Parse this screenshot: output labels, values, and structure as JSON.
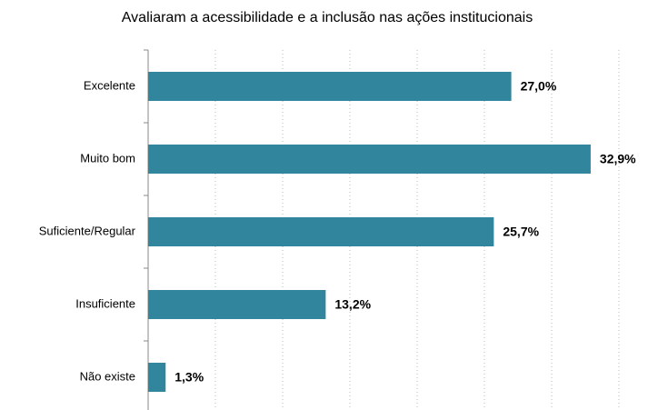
{
  "chart_data": {
    "type": "hbar",
    "title": "Avaliaram a acessibilidade e a inclusão nas ações institucionais",
    "categories": [
      "Excelente",
      "Muito bom",
      "Suficiente/Regular",
      "Insuficiente",
      "Não existe"
    ],
    "values": [
      27.0,
      32.9,
      25.7,
      13.2,
      1.3
    ],
    "value_labels": [
      "27,0%",
      "32,9%",
      "25,7%",
      "13,2%",
      "1,3%"
    ],
    "color": "#31859c",
    "xlim": [
      0,
      35
    ],
    "xticks": [
      5,
      10,
      15,
      20,
      25,
      30,
      35
    ],
    "grid": true
  }
}
